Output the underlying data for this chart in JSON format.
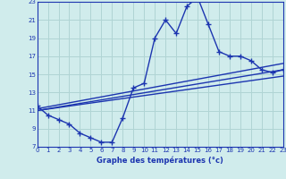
{
  "title": "Graphe des températures (°c)",
  "background_color": "#d0ecec",
  "grid_color": "#b0d4d4",
  "line_color": "#1c35b0",
  "xmin": 0,
  "xmax": 23,
  "ymin": 7,
  "ymax": 23,
  "yticks": [
    7,
    9,
    11,
    13,
    15,
    17,
    19,
    21,
    23
  ],
  "xticks": [
    0,
    1,
    2,
    3,
    4,
    5,
    6,
    7,
    8,
    9,
    10,
    11,
    12,
    13,
    14,
    15,
    16,
    17,
    18,
    19,
    20,
    21,
    22,
    23
  ],
  "main_x": [
    0,
    1,
    2,
    3,
    4,
    5,
    6,
    7,
    8,
    9,
    10,
    11,
    12,
    13,
    14,
    15,
    16,
    17,
    18,
    19,
    20,
    21,
    22,
    23
  ],
  "main_y": [
    11.5,
    10.5,
    10.0,
    9.5,
    8.5,
    8.0,
    7.5,
    7.5,
    10.2,
    13.5,
    14.0,
    19.0,
    21.0,
    19.5,
    22.5,
    23.5,
    20.5,
    17.5,
    17.0,
    17.0,
    16.5,
    15.5,
    15.2,
    15.5
  ],
  "trend1_x": [
    0,
    23
  ],
  "trend1_y": [
    11.2,
    16.2
  ],
  "trend2_x": [
    0,
    23
  ],
  "trend2_y": [
    11.0,
    15.5
  ],
  "trend3_x": [
    0,
    23
  ],
  "trend3_y": [
    11.0,
    14.8
  ]
}
